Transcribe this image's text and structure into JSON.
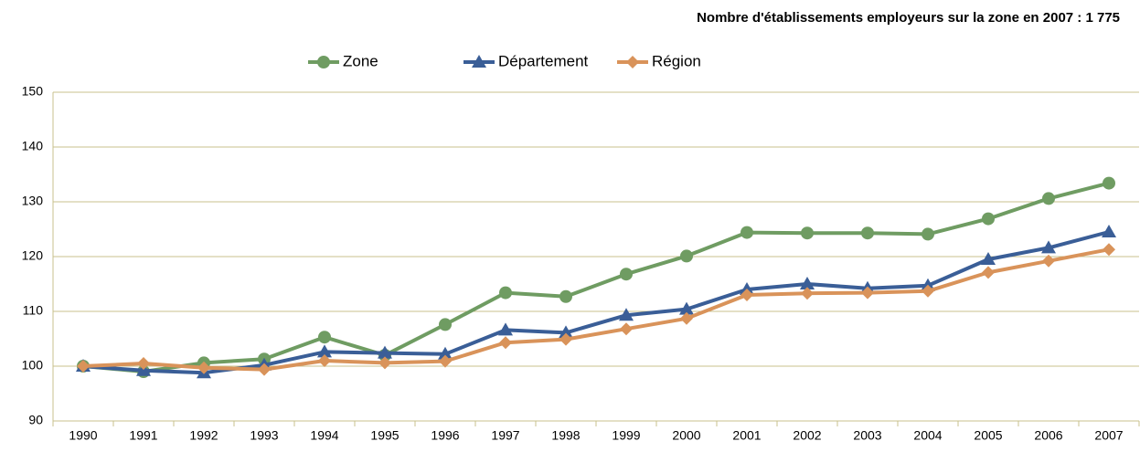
{
  "chart_data": {
    "type": "line",
    "title": "Nombre d'établissements employeurs sur la zone en 2007 :  1 775",
    "categories": [
      "1990",
      "1991",
      "1992",
      "1993",
      "1994",
      "1995",
      "1996",
      "1997",
      "1998",
      "1999",
      "2000",
      "2001",
      "2002",
      "2003",
      "2004",
      "2005",
      "2006",
      "2007"
    ],
    "series": [
      {
        "name": "Zone",
        "color": "#6f9c62",
        "marker": "circle",
        "values": [
          100,
          99,
          100.6,
          101.3,
          105.3,
          102,
          107.6,
          113.4,
          112.7,
          116.8,
          120.1,
          124.4,
          124.3,
          124.3,
          124.1,
          126.9,
          130.6,
          133.4
        ]
      },
      {
        "name": "Département",
        "color": "#3a5e97",
        "marker": "triangle",
        "values": [
          100,
          99.2,
          98.8,
          100.2,
          102.6,
          102.4,
          102.2,
          106.6,
          106.1,
          109.3,
          110.4,
          114,
          115,
          114.2,
          114.7,
          119.5,
          121.6,
          124.5
        ]
      },
      {
        "name": "Région",
        "color": "#d9935a",
        "marker": "diamond",
        "values": [
          100,
          100.5,
          99.7,
          99.4,
          101,
          100.6,
          100.9,
          104.3,
          104.9,
          106.8,
          108.7,
          113,
          113.3,
          113.4,
          113.7,
          117.1,
          119.2,
          121.3
        ]
      }
    ],
    "ylim": [
      90,
      150
    ],
    "yticks": [
      90,
      100,
      110,
      120,
      130,
      140,
      150
    ],
    "grid": true
  }
}
